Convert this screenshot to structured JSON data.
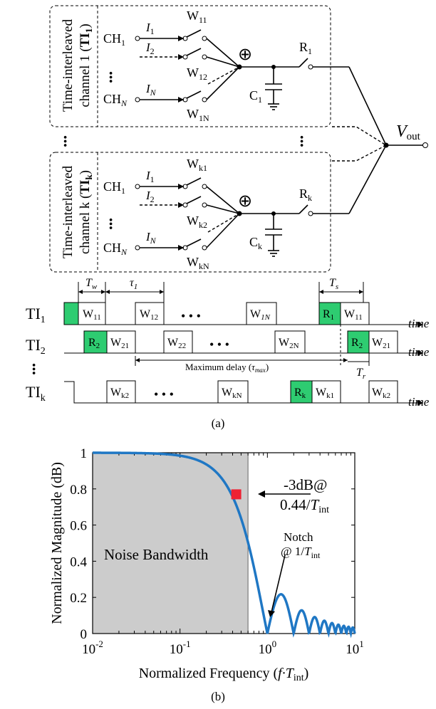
{
  "diagram": {
    "block1": {
      "label_line1": "Time-interleaved",
      "label_line2": "channel 1 (",
      "label_bold": "TI",
      "label_bold_sub": "1",
      "label_close": ")",
      "ch1": "CH",
      "ch1_sub": "1",
      "chN": "CH",
      "chN_sub": "N",
      "i1": "I",
      "i1_sub": "1",
      "i2": "I",
      "i2_sub": "2",
      "iN": "I",
      "iN_sub": "N",
      "w1": "W",
      "w1_sub": "11",
      "w2": "W",
      "w2_sub": "12",
      "wN": "W",
      "wN_sub": "1N",
      "cap": "C",
      "cap_sub": "1",
      "res": "R",
      "res_sub": "1"
    },
    "block2": {
      "label_line1": "Time-interleaved",
      "label_line2": "channel k (",
      "label_bold": "TI",
      "label_bold_sub": "k",
      "label_close": ")",
      "ch1": "CH",
      "ch1_sub": "1",
      "chN": "CH",
      "chN_sub": "N",
      "i1": "I",
      "i1_sub": "1",
      "i2": "I",
      "i2_sub": "2",
      "iN": "I",
      "iN_sub": "N",
      "w1": "W",
      "w1_sub": "k1",
      "w2": "W",
      "w2_sub": "k2",
      "wN": "W",
      "wN_sub": "kN",
      "cap": "C",
      "cap_sub": "k",
      "res": "R",
      "res_sub": "k"
    },
    "vout": "V",
    "vout_sub": "out",
    "sum_symbol": "⊕",
    "dots": "•••"
  },
  "timing": {
    "tw": "T",
    "tw_sub": "w",
    "tau": "τ",
    "tau_sub": "1",
    "ts": "T",
    "ts_sub": "s",
    "tr": "T",
    "tr_sub": "r",
    "time_label": "time",
    "max_delay": "Maximum delay (",
    "max_delay_sym": "τ",
    "max_delay_sub": "max",
    "max_delay_close": ")",
    "rows": [
      {
        "name": "TI",
        "sub": "1",
        "pulses": [
          {
            "t": "",
            "s": ""
          },
          {
            "t": "W",
            "s": "11"
          },
          {
            "t": "W",
            "s": "12"
          },
          {
            "t": "W",
            "s": "1N"
          },
          {
            "t": "R",
            "s": "1"
          },
          {
            "t": "W",
            "s": "11"
          }
        ]
      },
      {
        "name": "TI",
        "sub": "2",
        "pulses": [
          {
            "t": "R",
            "s": "2"
          },
          {
            "t": "W",
            "s": "21"
          },
          {
            "t": "W",
            "s": "22"
          },
          {
            "t": "W",
            "s": "2N"
          },
          {
            "t": "R",
            "s": "2"
          },
          {
            "t": "W",
            "s": "21"
          }
        ]
      },
      {
        "name": "TI",
        "sub": "k",
        "pulses": [
          {
            "t": "W",
            "s": "k2"
          },
          {
            "t": "W",
            "s": "kN"
          },
          {
            "t": "R",
            "s": "k"
          },
          {
            "t": "W",
            "s": "k1"
          },
          {
            "t": "W",
            "s": "k2"
          }
        ]
      }
    ],
    "ellipsis": "• • •",
    "caption": "(a)"
  },
  "plot": {
    "xlabel": "Normalized Frequency (",
    "xlabel_sym": "f·T",
    "xlabel_sub": "int",
    "xlabel_close": ")",
    "ylabel": "Normalized Magnitude (dB)",
    "yticks": [
      "0",
      "0.2",
      "0.4",
      "0.6",
      "0.8",
      "1"
    ],
    "xticks": [
      {
        "b": "10",
        "e": "-2"
      },
      {
        "b": "10",
        "e": "-1"
      },
      {
        "b": "10",
        "e": "0"
      },
      {
        "b": "10",
        "e": "1"
      }
    ],
    "shade_label": "Noise Bandwidth",
    "ann1_line1": "-3dB@",
    "ann1_line2": "0.44/",
    "ann1_sym": "T",
    "ann1_sub": "int",
    "ann2_line1": "Notch",
    "ann2_line2": "@ 1/",
    "ann2_sym": "T",
    "ann2_sub": "int",
    "caption": "(b)",
    "curve_color": "#1f77c4",
    "marker_color": "#ee2233",
    "shade_color": "#cccccc"
  },
  "chart_data": {
    "type": "line",
    "x_scale": "log",
    "xlim": [
      0.01,
      10
    ],
    "ylim": [
      0,
      1
    ],
    "shaded_region_x": [
      0.01,
      0.6
    ],
    "marker_point": {
      "x": 0.44,
      "y": 0.77
    },
    "series": [
      {
        "values_x": [
          0.01,
          0.1,
          0.2,
          0.3,
          0.44,
          0.6,
          0.8,
          1.0,
          1.5,
          2.0,
          2.5,
          3.0,
          4.0,
          5.0,
          7.0,
          10.0
        ],
        "values_y": [
          1.0,
          0.98,
          0.94,
          0.86,
          0.77,
          0.55,
          0.23,
          0.0,
          0.21,
          0.0,
          0.13,
          0.0,
          0.0,
          0.0,
          0.0,
          0.0
        ]
      }
    ]
  }
}
